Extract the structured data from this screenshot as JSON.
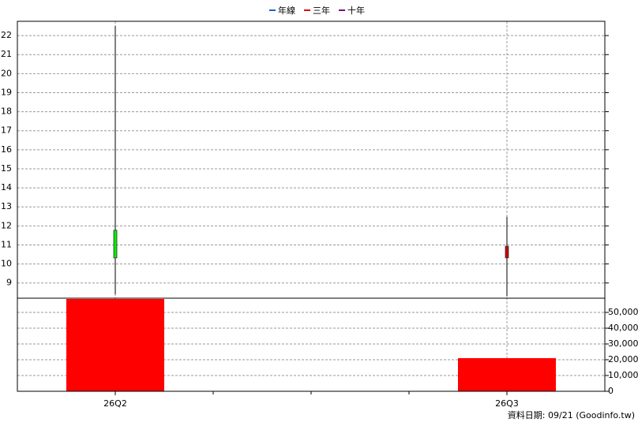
{
  "chart_data": {
    "type": "candlestick",
    "legend": [
      {
        "name": "年線",
        "color": "#1f5fd0"
      },
      {
        "name": "三年",
        "color": "#e00000"
      },
      {
        "name": "十年",
        "color": "#800080"
      }
    ],
    "categories": [
      "26Q2",
      "26Q3"
    ],
    "open": [
      11.77,
      10.32
    ],
    "high": [
      22.5,
      12.48
    ],
    "low": [
      8.4,
      8.3
    ],
    "close": [
      10.32,
      10.93
    ],
    "up_color": "#cc0000",
    "down_color": "#00ee00",
    "ylim": [
      8.2,
      22.75
    ],
    "yticks": [
      9,
      10,
      11,
      12,
      13,
      14,
      15,
      16,
      17,
      18,
      19,
      20,
      21,
      22
    ],
    "volume": {
      "values": [
        58500,
        21000
      ],
      "color": "#ff0000",
      "ylim": [
        0,
        59000
      ],
      "yticks": [
        0,
        {
          "value": 10000,
          "label": "10,000"
        },
        {
          "value": 20000,
          "label": "20,000"
        },
        {
          "value": 30000,
          "label": "30,000"
        },
        {
          "value": 40000,
          "label": "40,000"
        },
        {
          "value": 50000,
          "label": "50,000"
        }
      ]
    },
    "grid": true,
    "source": "資料日期: 09/21  (Goodinfo.tw)"
  }
}
